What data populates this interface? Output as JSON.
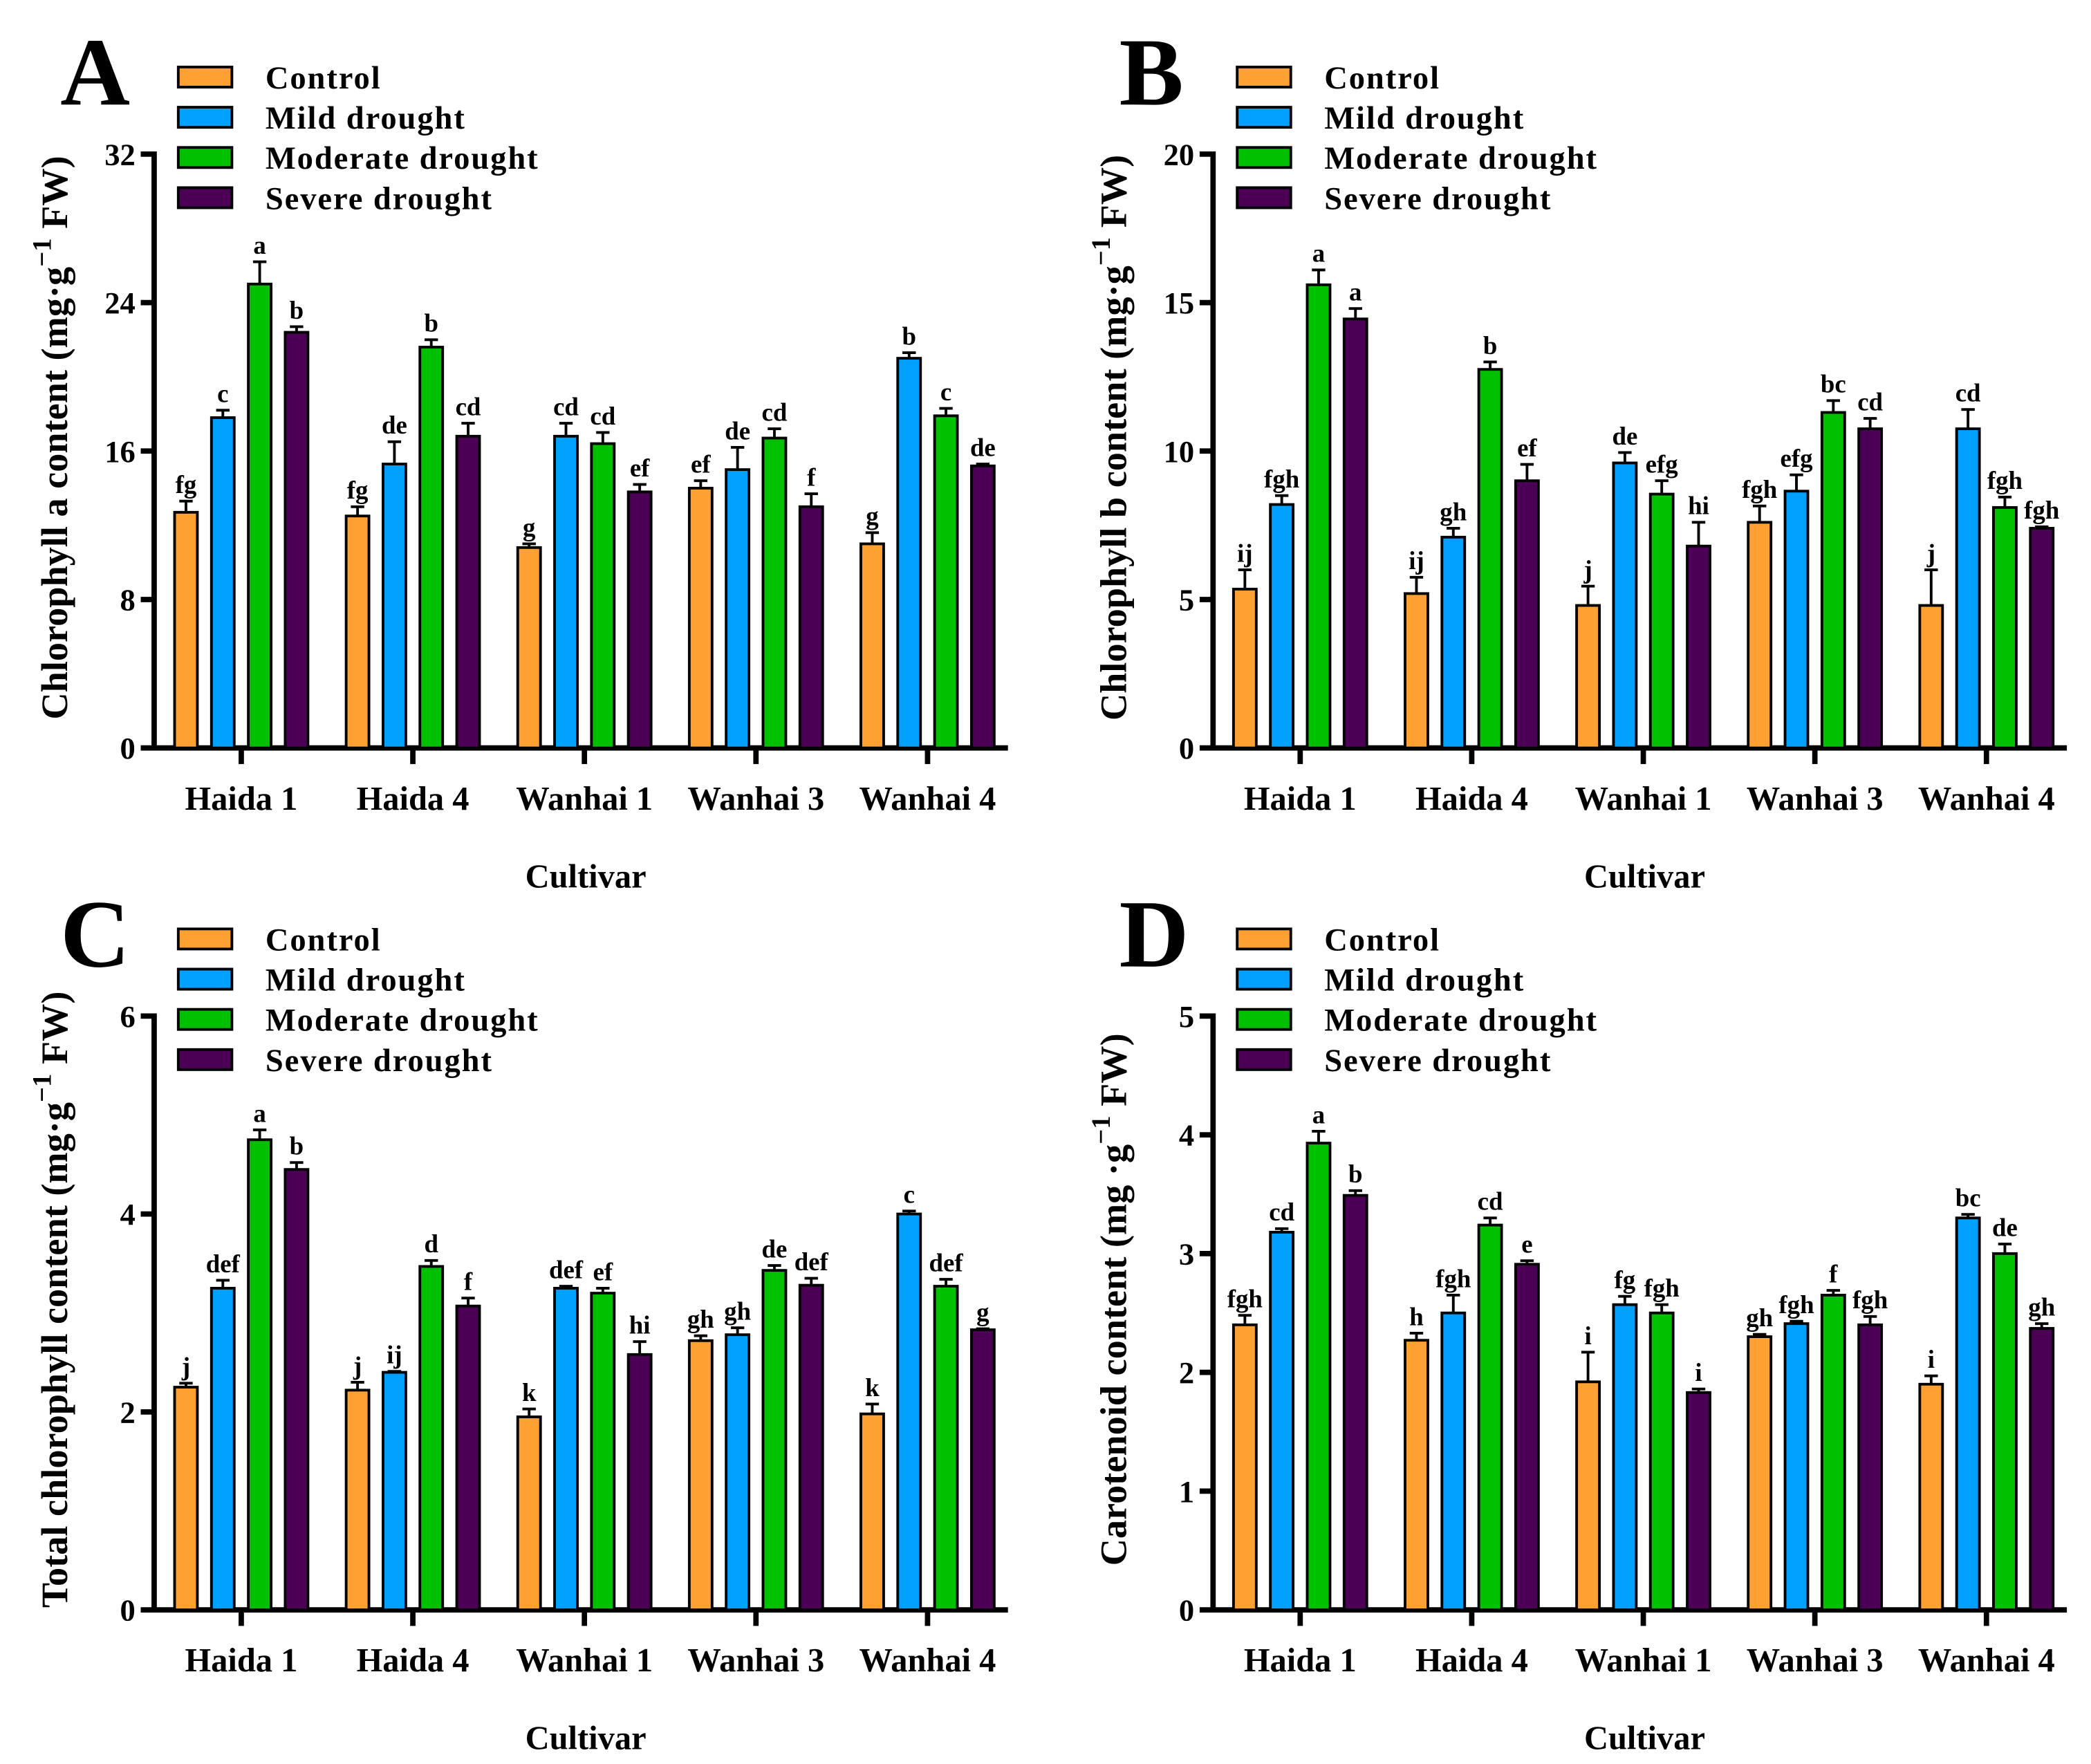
{
  "legend": [
    "Control",
    "Mild drought",
    "Moderate drought",
    "Severe drought"
  ],
  "colors": [
    "#FFA033",
    "#00A0FF",
    "#00C000",
    "#4B0055"
  ],
  "chart_data": [
    {
      "type": "bar",
      "panel": "A",
      "ylabel_main": "Chlorophyll a content (mg·g",
      "ylabel_sup": "−1",
      "ylabel_end": " FW)",
      "xlabel": "Cultivar",
      "categories": [
        "Haida 1",
        "Haida 4",
        "Wanhai 1",
        "Wanhai 3",
        "Wanhai 4"
      ],
      "ylim": [
        0,
        32
      ],
      "yticks": [
        "0",
        "8",
        "16",
        "24",
        "32"
      ],
      "series": [
        {
          "name": "Control",
          "values": [
            12.7,
            12.5,
            10.8,
            14.0,
            11.0
          ],
          "errors": [
            0.6,
            0.5,
            0.2,
            0.4,
            0.6
          ],
          "letters": [
            "fg",
            "fg",
            "g",
            "ef",
            "g"
          ]
        },
        {
          "name": "Mild drought",
          "values": [
            17.8,
            15.3,
            16.8,
            15.0,
            21.0
          ],
          "errors": [
            0.4,
            1.2,
            0.7,
            1.2,
            0.3
          ],
          "letters": [
            "c",
            "de",
            "cd",
            "de",
            "b"
          ]
        },
        {
          "name": "Moderate drought",
          "values": [
            25.0,
            21.6,
            16.4,
            16.7,
            17.9
          ],
          "errors": [
            1.2,
            0.4,
            0.6,
            0.5,
            0.4
          ],
          "letters": [
            "a",
            "b",
            "cd",
            "cd",
            "c"
          ]
        },
        {
          "name": "Severe drought",
          "values": [
            22.4,
            16.8,
            13.8,
            13.0,
            15.2
          ],
          "errors": [
            0.3,
            0.7,
            0.4,
            0.7,
            0.1
          ],
          "letters": [
            "b",
            "cd",
            "ef",
            "f",
            "de"
          ]
        }
      ]
    },
    {
      "type": "bar",
      "panel": "B",
      "ylabel_main": "Chlorophyll b content (mg·g",
      "ylabel_sup": "−1",
      "ylabel_end": " FW)",
      "xlabel": "Cultivar",
      "categories": [
        "Haida 1",
        "Haida 4",
        "Wanhai 1",
        "Wanhai 3",
        "Wanhai 4"
      ],
      "ylim": [
        0,
        20
      ],
      "yticks": [
        "0",
        "5",
        "10",
        "15",
        "20"
      ],
      "series": [
        {
          "name": "Control",
          "values": [
            5.35,
            5.2,
            4.8,
            7.6,
            4.8
          ],
          "errors": [
            0.65,
            0.55,
            0.65,
            0.55,
            1.2
          ],
          "letters": [
            "ij",
            "ij",
            "j",
            "fgh",
            "j"
          ]
        },
        {
          "name": "Mild drought",
          "values": [
            8.2,
            7.1,
            9.6,
            8.65,
            10.75
          ],
          "errors": [
            0.3,
            0.3,
            0.35,
            0.55,
            0.65
          ],
          "letters": [
            "fgh",
            "gh",
            "de",
            "efg",
            "cd"
          ]
        },
        {
          "name": "Moderate drought",
          "values": [
            15.6,
            12.75,
            8.55,
            11.3,
            8.1
          ],
          "errors": [
            0.5,
            0.25,
            0.45,
            0.4,
            0.35
          ],
          "letters": [
            "a",
            "b",
            "efg",
            "bc",
            "fgh"
          ]
        },
        {
          "name": "Severe drought",
          "values": [
            14.45,
            9.0,
            6.8,
            10.75,
            7.4
          ],
          "errors": [
            0.35,
            0.55,
            0.8,
            0.35,
            0.05
          ],
          "letters": [
            "a",
            "ef",
            "hi",
            "cd",
            "fgh"
          ]
        }
      ]
    },
    {
      "type": "bar",
      "panel": "C",
      "ylabel_main": "Total chlorophyll content (mg·g",
      "ylabel_sup": "−1",
      "ylabel_end": " FW)",
      "xlabel": "Cultivar",
      "categories": [
        "Haida 1",
        "Haida 4",
        "Wanhai 1",
        "Wanhai 3",
        "Wanhai 4"
      ],
      "ylim": [
        0,
        6
      ],
      "yticks": [
        "0",
        "2",
        "4",
        "6"
      ],
      "series": [
        {
          "name": "Control",
          "values": [
            2.25,
            2.22,
            1.95,
            2.72,
            1.98
          ],
          "errors": [
            0.04,
            0.08,
            0.08,
            0.05,
            0.1
          ],
          "letters": [
            "j",
            "j",
            "k",
            "gh",
            "k"
          ]
        },
        {
          "name": "Mild drought",
          "values": [
            3.25,
            2.4,
            3.25,
            2.78,
            4.0
          ],
          "errors": [
            0.08,
            0.01,
            0.02,
            0.07,
            0.03
          ],
          "letters": [
            "def",
            "ij",
            "def",
            "gh",
            "c"
          ]
        },
        {
          "name": "Moderate drought",
          "values": [
            4.75,
            3.47,
            3.2,
            3.43,
            3.27
          ],
          "errors": [
            0.1,
            0.06,
            0.05,
            0.05,
            0.07
          ],
          "letters": [
            "a",
            "d",
            "ef",
            "de",
            "def"
          ]
        },
        {
          "name": "Severe drought",
          "values": [
            4.45,
            3.07,
            2.58,
            3.28,
            2.83
          ],
          "errors": [
            0.07,
            0.08,
            0.13,
            0.07,
            0.01
          ],
          "letters": [
            "b",
            "f",
            "hi",
            "def",
            "g"
          ]
        }
      ]
    },
    {
      "type": "bar",
      "panel": "D",
      "ylabel_main": "Carotenoid content (mg ·g",
      "ylabel_sup": "−1",
      "ylabel_end": " FW)",
      "xlabel": "Cultivar",
      "categories": [
        "Haida 1",
        "Haida 4",
        "Wanhai 1",
        "Wanhai 3",
        "Wanhai 4"
      ],
      "ylim": [
        0,
        5
      ],
      "yticks": [
        "0",
        "1",
        "2",
        "3",
        "4",
        "5"
      ],
      "series": [
        {
          "name": "Control",
          "values": [
            2.4,
            2.27,
            1.92,
            2.3,
            1.9
          ],
          "errors": [
            0.08,
            0.06,
            0.25,
            0.02,
            0.07
          ],
          "letters": [
            "fgh",
            "h",
            "i",
            "gh",
            "i"
          ]
        },
        {
          "name": "Mild drought",
          "values": [
            3.18,
            2.5,
            2.57,
            2.41,
            3.3
          ],
          "errors": [
            0.03,
            0.15,
            0.07,
            0.02,
            0.03
          ],
          "letters": [
            "cd",
            "fgh",
            "fg",
            "fgh",
            "bc"
          ]
        },
        {
          "name": "Moderate drought",
          "values": [
            3.93,
            3.24,
            2.5,
            2.65,
            3.0
          ],
          "errors": [
            0.1,
            0.06,
            0.07,
            0.04,
            0.08
          ],
          "letters": [
            "a",
            "cd",
            "fgh",
            "f",
            "de"
          ]
        },
        {
          "name": "Severe drought",
          "values": [
            3.49,
            2.91,
            1.83,
            2.4,
            2.37
          ],
          "errors": [
            0.04,
            0.03,
            0.03,
            0.07,
            0.04
          ],
          "letters": [
            "b",
            "e",
            "i",
            "fgh",
            "gh"
          ]
        }
      ]
    }
  ]
}
